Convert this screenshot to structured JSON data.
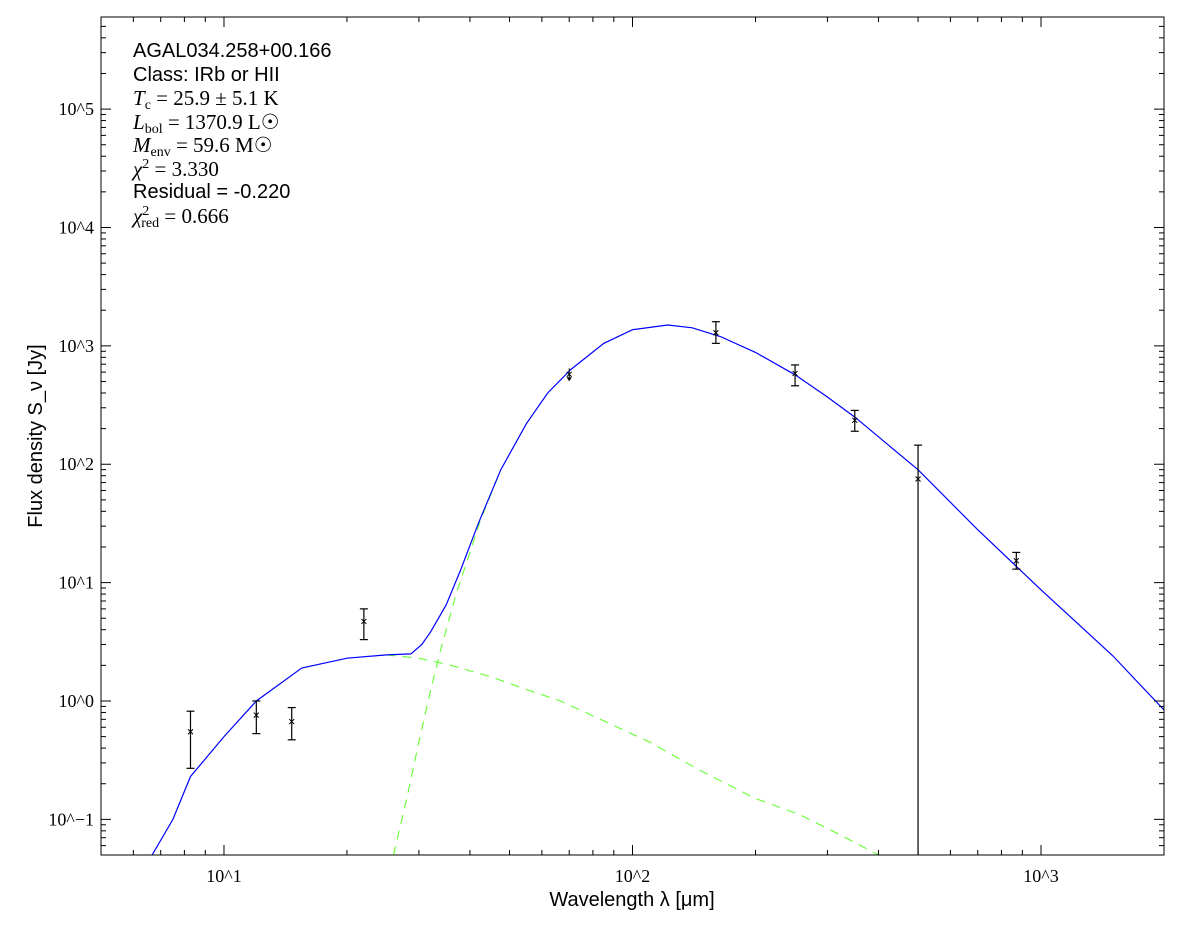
{
  "chart_data": {
    "type": "scatter",
    "title": "",
    "xlabel": "Wavelength λ [μm]",
    "ylabel": "Flux density S_ν [Jy]",
    "xscale": "log",
    "yscale": "log",
    "xlim": [
      5,
      2000
    ],
    "ylim": [
      0.05,
      600000
    ],
    "grid": false,
    "x_ticks": [
      {
        "value": 10,
        "label": "10^1"
      },
      {
        "value": 100,
        "label": "10^2"
      },
      {
        "value": 1000,
        "label": "10^3"
      }
    ],
    "y_ticks": [
      {
        "value": 0.1,
        "label": "10^−1"
      },
      {
        "value": 1,
        "label": "10^0"
      },
      {
        "value": 10,
        "label": "10^1"
      },
      {
        "value": 100,
        "label": "10^2"
      },
      {
        "value": 1000,
        "label": "10^3"
      },
      {
        "value": 10000,
        "label": "10^4"
      },
      {
        "value": 100000,
        "label": "10^5"
      }
    ],
    "annotations": {
      "source": "AGAL034.258+00.166",
      "class": "Class: IRb or HII",
      "tc": {
        "sym": "T",
        "sub": "c",
        "text": " = 25.9 ± 5.1 K"
      },
      "lbol": {
        "sym": "L",
        "sub": "bol",
        "text": " = 1370.9 L☉"
      },
      "menv": {
        "sym": "M",
        "sub": "env",
        "text": " = 59.6 M☉"
      },
      "chi2": {
        "sym": "χ",
        "sup": "2",
        "text": " = 3.330"
      },
      "residual": "Residual = -0.220",
      "chi2red": {
        "sym": "χ",
        "sup": "2",
        "sub": "red",
        "text": " = 0.666"
      }
    },
    "points": [
      {
        "x": 8.28,
        "y": 0.55,
        "ylo": 0.27,
        "yhi": 0.82
      },
      {
        "x": 12,
        "y": 0.76,
        "ylo": 0.53,
        "yhi": 1.0
      },
      {
        "x": 14.65,
        "y": 0.67,
        "ylo": 0.47,
        "yhi": 0.88
      },
      {
        "x": 22,
        "y": 4.7,
        "ylo": 3.3,
        "yhi": 6.0
      },
      {
        "x": 70,
        "y": 575,
        "upper_limit": true
      },
      {
        "x": 160,
        "y": 1290,
        "ylo": 1050,
        "yhi": 1600
      },
      {
        "x": 250,
        "y": 585,
        "ylo": 460,
        "yhi": 690
      },
      {
        "x": 350,
        "y": 235,
        "ylo": 190,
        "yhi": 285
      },
      {
        "x": 500,
        "y": 75,
        "ylo": 0.05,
        "yhi": 145
      },
      {
        "x": 870,
        "y": 15.3,
        "ylo": 13,
        "yhi": 18
      }
    ],
    "series": [
      {
        "style": "solid",
        "color": "#0000ff",
        "points": [
          [
            6.67,
            0.05
          ],
          [
            7.5,
            0.1
          ],
          [
            8.28,
            0.23
          ],
          [
            10,
            0.5
          ],
          [
            12,
            1.0
          ],
          [
            15.5,
            1.9
          ],
          [
            20,
            2.3
          ],
          [
            25,
            2.45
          ],
          [
            28.7,
            2.5
          ],
          [
            30.5,
            3.0
          ],
          [
            32,
            3.8
          ],
          [
            35,
            6.5
          ],
          [
            38,
            12.9
          ],
          [
            42,
            32
          ],
          [
            47.6,
            90
          ],
          [
            55,
            220
          ],
          [
            62,
            400
          ],
          [
            70.6,
            630
          ],
          [
            85,
            1050
          ],
          [
            100,
            1370
          ],
          [
            122,
            1500
          ],
          [
            140,
            1420
          ],
          [
            164,
            1200
          ],
          [
            200,
            880
          ],
          [
            250,
            570
          ],
          [
            300,
            370
          ],
          [
            350,
            250
          ],
          [
            500,
            90
          ],
          [
            700,
            28
          ],
          [
            1000,
            8.7
          ],
          [
            1500,
            2.4
          ],
          [
            2000,
            0.84
          ]
        ]
      },
      {
        "style": "dashed",
        "color": "#66ff33",
        "points": [
          [
            25,
            2.45
          ],
          [
            30,
            2.3
          ],
          [
            36,
            2.0
          ],
          [
            45,
            1.6
          ],
          [
            55,
            1.25
          ],
          [
            66.6,
            1.0
          ],
          [
            85,
            0.68
          ],
          [
            110,
            0.45
          ],
          [
            146,
            0.26
          ],
          [
            200,
            0.15
          ],
          [
            256,
            0.11
          ],
          [
            320,
            0.075
          ],
          [
            400,
            0.05
          ]
        ]
      },
      {
        "style": "dashed",
        "color": "#66ff33",
        "points": [
          [
            26,
            0.05
          ],
          [
            28,
            0.15
          ],
          [
            30,
            0.45
          ],
          [
            32,
            1.2
          ],
          [
            34,
            2.8
          ],
          [
            37,
            8
          ],
          [
            40,
            18
          ],
          [
            42.5,
            34
          ],
          [
            47.6,
            90
          ]
        ]
      }
    ],
    "colors": {
      "model_total": "#0000ff",
      "model_components": "#66ff33",
      "data": "#000000"
    }
  }
}
